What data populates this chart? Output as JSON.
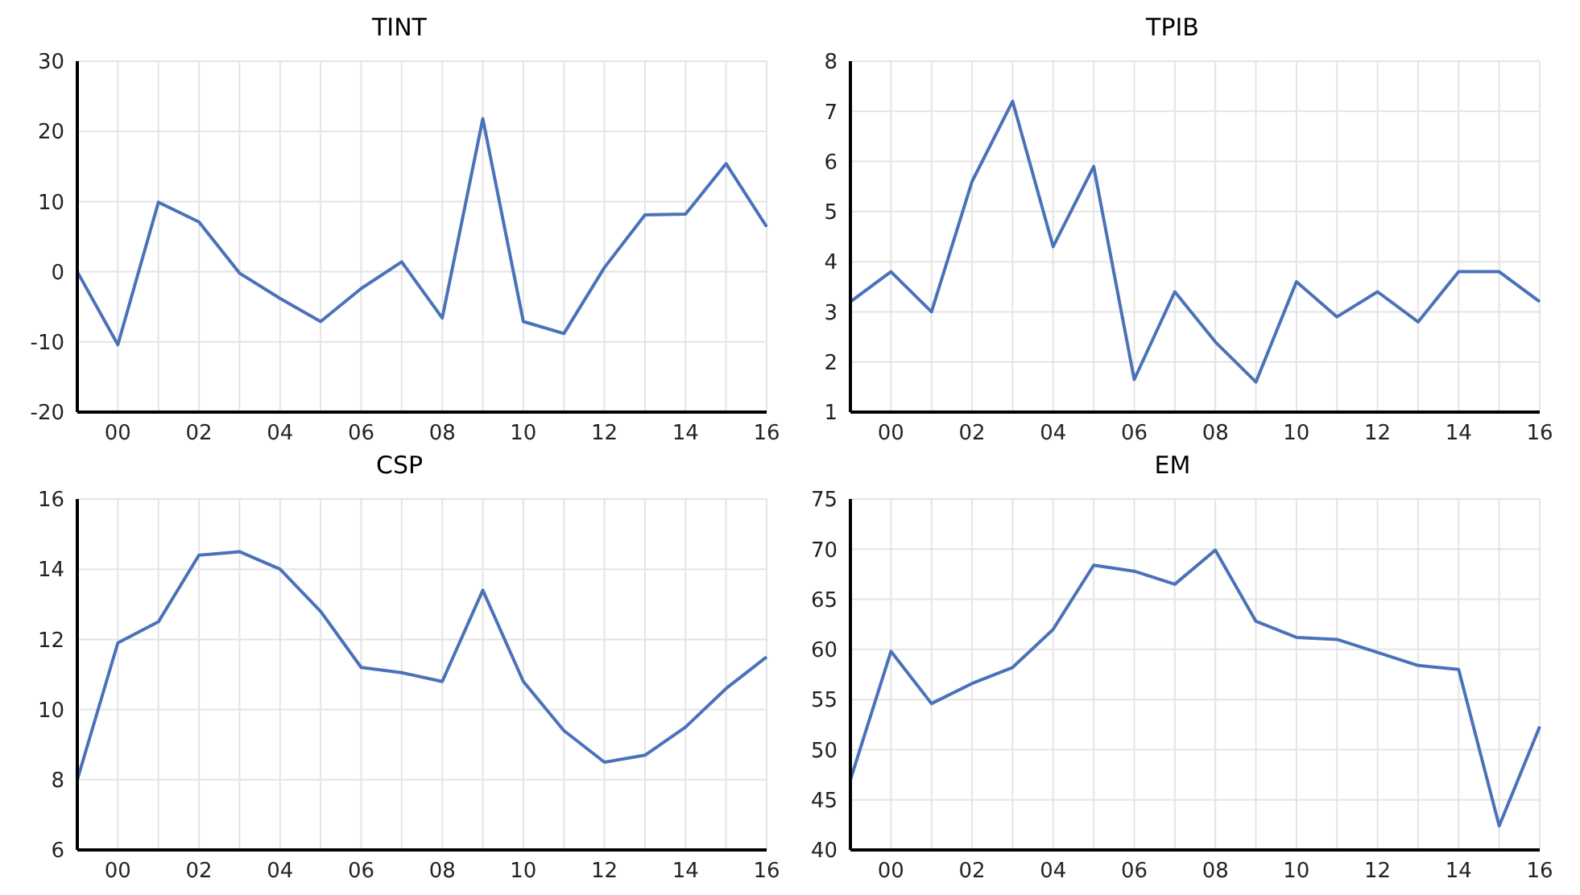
{
  "chart_data": [
    {
      "type": "line",
      "title": "TINT",
      "categories": [
        null,
        "00",
        null,
        "02",
        null,
        "04",
        null,
        "06",
        null,
        "08",
        null,
        "10",
        null,
        "12",
        null,
        "14",
        null,
        "16"
      ],
      "values": [
        0,
        -10.4,
        9.9,
        7.1,
        -0.2,
        -3.8,
        -7.1,
        -2.4,
        1.4,
        -6.6,
        21.8,
        -7.1,
        -8.8,
        0.6,
        8.1,
        8.2,
        15.4,
        6.4
      ],
      "color": "#4a72b8",
      "ylim": [
        -20,
        30
      ],
      "yticks": [
        -20,
        -10,
        0,
        10,
        20,
        30
      ],
      "grid": true
    },
    {
      "type": "line",
      "title": "TPIB",
      "categories": [
        null,
        "00",
        null,
        "02",
        null,
        "04",
        null,
        "06",
        null,
        "08",
        null,
        "10",
        null,
        "12",
        null,
        "14",
        null,
        "16"
      ],
      "values": [
        3.2,
        3.8,
        3.0,
        5.6,
        7.2,
        4.3,
        5.9,
        1.65,
        3.4,
        2.4,
        1.6,
        3.6,
        2.9,
        3.4,
        2.8,
        3.8,
        3.8,
        3.2
      ],
      "color": "#4a72b8",
      "ylim": [
        1,
        8
      ],
      "yticks": [
        1,
        2,
        3,
        4,
        5,
        6,
        7,
        8
      ],
      "grid": true
    },
    {
      "type": "line",
      "title": "CSP",
      "categories": [
        null,
        "00",
        null,
        "02",
        null,
        "04",
        null,
        "06",
        null,
        "08",
        null,
        "10",
        null,
        "12",
        null,
        "14",
        null,
        "16"
      ],
      "values": [
        8.0,
        11.9,
        12.5,
        14.4,
        14.5,
        14.0,
        12.8,
        11.2,
        11.05,
        10.8,
        13.4,
        10.8,
        9.4,
        8.5,
        8.7,
        9.5,
        10.6,
        11.5
      ],
      "color": "#4a72b8",
      "ylim": [
        6,
        16
      ],
      "yticks": [
        6,
        8,
        10,
        12,
        14,
        16
      ],
      "grid": true
    },
    {
      "type": "line",
      "title": "EM",
      "categories": [
        null,
        "00",
        null,
        "02",
        null,
        "04",
        null,
        "06",
        null,
        "08",
        null,
        "10",
        null,
        "12",
        null,
        "14",
        null,
        "16"
      ],
      "values": [
        47,
        59.8,
        54.6,
        56.6,
        58.2,
        62.0,
        68.4,
        67.8,
        66.5,
        69.9,
        62.8,
        61.2,
        61.0,
        59.7,
        58.4,
        58.0,
        42.4,
        52.3
      ],
      "color": "#4a72b8",
      "ylim": [
        40,
        75
      ],
      "yticks": [
        40,
        45,
        50,
        55,
        60,
        65,
        70,
        75
      ],
      "grid": true
    }
  ]
}
